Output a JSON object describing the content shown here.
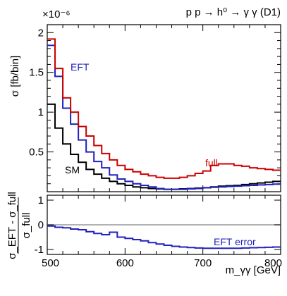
{
  "chart_data": [
    {
      "type": "line",
      "step": true,
      "title": "p p → h⁰ → γ γ (D1)",
      "ylabel": "σ [fb/bin]",
      "y_multiplier": "×10⁻⁶",
      "x_range": [
        500,
        800
      ],
      "ylim": [
        0,
        2.1
      ],
      "yticks": [
        "0.5",
        "1",
        "1.5",
        "2"
      ],
      "ytick_values": [
        0.5,
        1.0,
        1.5,
        2.0
      ],
      "bin_edges": [
        500,
        510,
        520,
        530,
        540,
        550,
        560,
        570,
        580,
        590,
        600,
        610,
        620,
        630,
        640,
        650,
        660,
        670,
        680,
        690,
        700,
        710,
        720,
        730,
        740,
        750,
        760,
        770,
        780,
        790,
        800
      ],
      "series": [
        {
          "name": "full",
          "color": "#cc0000",
          "values": [
            1.92,
            1.55,
            1.18,
            1.0,
            0.82,
            0.7,
            0.58,
            0.48,
            0.4,
            0.33,
            0.28,
            0.25,
            0.22,
            0.2,
            0.18,
            0.17,
            0.17,
            0.18,
            0.2,
            0.23,
            0.26,
            0.33,
            0.35,
            0.35,
            0.33,
            0.32,
            0.3,
            0.29,
            0.28,
            0.27
          ]
        },
        {
          "name": "EFT",
          "color": "#2222bb",
          "values": [
            1.84,
            1.45,
            1.05,
            0.85,
            0.65,
            0.5,
            0.38,
            0.3,
            0.21,
            0.16,
            0.13,
            0.1,
            0.08,
            0.06,
            0.04,
            0.03,
            0.03,
            0.03,
            0.035,
            0.04,
            0.05,
            0.055,
            0.06,
            0.065,
            0.07,
            0.075,
            0.08,
            0.085,
            0.09,
            0.095
          ]
        },
        {
          "name": "SM",
          "color": "#000000",
          "values": [
            1.1,
            0.8,
            0.6,
            0.47,
            0.37,
            0.28,
            0.22,
            0.17,
            0.13,
            0.1,
            0.08,
            0.06,
            0.05,
            0.04,
            0.035,
            0.03,
            0.03,
            0.035,
            0.04,
            0.045,
            0.05,
            0.06,
            0.07,
            0.075,
            0.08,
            0.09,
            0.1,
            0.11,
            0.12,
            0.13
          ]
        }
      ],
      "labels": {
        "eft": "EFT",
        "full": "full",
        "sm": "SM"
      }
    },
    {
      "type": "line",
      "step": true,
      "ylabel_num": "σ_EFT - σ_full",
      "ylabel_den": "σ_full",
      "xlabel": "m_γγ [GeV]",
      "x_range": [
        500,
        800
      ],
      "ylim": [
        -1.2,
        1.2
      ],
      "xticks": [
        "500",
        "600",
        "700",
        "800"
      ],
      "xtick_values": [
        500,
        600,
        700,
        800
      ],
      "yticks": [
        "-1",
        "0",
        "1"
      ],
      "ytick_values": [
        -1,
        0,
        1
      ],
      "reference_line": 0,
      "bin_edges": [
        500,
        510,
        520,
        530,
        540,
        550,
        560,
        570,
        580,
        590,
        600,
        610,
        620,
        630,
        640,
        650,
        660,
        670,
        680,
        690,
        700,
        710,
        720,
        730,
        740,
        750,
        760,
        770,
        780,
        790,
        800
      ],
      "series": [
        {
          "name": "EFT error",
          "color": "#2222bb",
          "values": [
            -0.05,
            -0.1,
            -0.12,
            -0.17,
            -0.2,
            -0.28,
            -0.35,
            -0.4,
            -0.3,
            -0.5,
            -0.55,
            -0.6,
            -0.65,
            -0.72,
            -0.78,
            -0.83,
            -0.87,
            -0.9,
            -0.92,
            -0.94,
            -0.95,
            -0.95,
            -0.95,
            -0.95,
            -0.95,
            -0.94,
            -0.93,
            -0.92,
            -0.91,
            -0.9
          ]
        }
      ],
      "labels": {
        "error": "EFT error"
      }
    }
  ],
  "colors": {
    "full": "#cc0000",
    "eft": "#2222bb",
    "sm": "#000000",
    "zero_line": "#999999",
    "frame": "#000000"
  }
}
